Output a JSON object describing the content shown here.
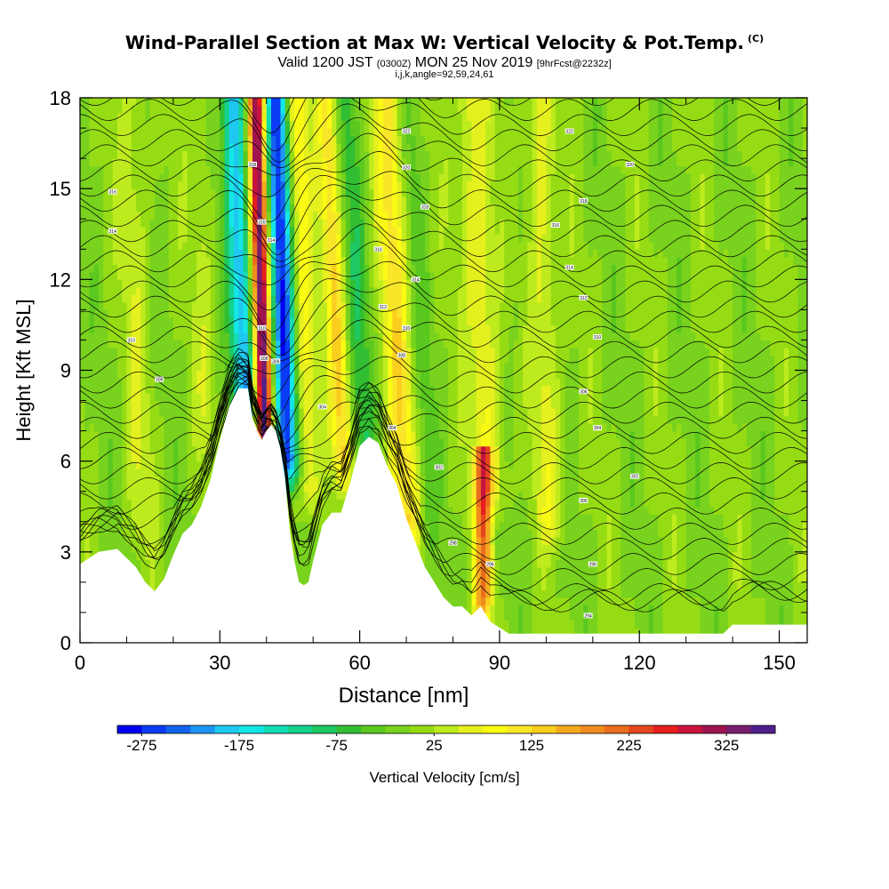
{
  "title": {
    "main": "Wind-Parallel Section at Max W: Vertical Velocity & Pot.Temp.",
    "copyright": "(C)",
    "valid_prefix": "Valid 1200 JST",
    "valid_utc": "(0300Z)",
    "valid_date": "MON 25 Nov 2019",
    "forecast": "[9hrFcst@2232z]",
    "indices": "i,j,k,angle=92,59,24,61"
  },
  "chart_data": {
    "type": "heatmap",
    "xlabel": "Distance [nm]",
    "ylabel": "Height [Kft MSL]",
    "xlim": [
      0,
      156
    ],
    "ylim": [
      0,
      18
    ],
    "x_ticks": [
      0,
      30,
      60,
      90,
      120,
      150
    ],
    "y_ticks": [
      0,
      3,
      6,
      9,
      12,
      15,
      18
    ],
    "colorbar": {
      "label": "Vertical Velocity [cm/s]",
      "tick_values": [
        -275,
        -175,
        -75,
        25,
        125,
        225,
        325
      ],
      "tick_labels": [
        "-275",
        "-175",
        "-75",
        "25",
        "125",
        "225",
        "325"
      ],
      "range": [
        -300,
        375
      ],
      "colors": [
        "#0000f0",
        "#0a3cf5",
        "#1464f0",
        "#1e96f5",
        "#1ec8f0",
        "#14e6e6",
        "#14dcb4",
        "#14d28c",
        "#1ec864",
        "#32be32",
        "#5ac81e",
        "#78d21e",
        "#96dc14",
        "#beeb1e",
        "#e6f01e",
        "#fafa14",
        "#fae628",
        "#facd1e",
        "#f5aa1e",
        "#f08c1e",
        "#eb6e1e",
        "#e6461e",
        "#e61e1e",
        "#c8143c",
        "#a01450",
        "#781e6e",
        "#501e8c"
      ]
    },
    "terrain_profile": {
      "distance": [
        0,
        4,
        8,
        12,
        14,
        16,
        18,
        20,
        22,
        24,
        26,
        28,
        30,
        32,
        34,
        36,
        37,
        38,
        39,
        40,
        41,
        42,
        43,
        44,
        45,
        46,
        47,
        48,
        49,
        50,
        52,
        54,
        56,
        58,
        60,
        62,
        64,
        66,
        68,
        70,
        72,
        74,
        76,
        78,
        80,
        82,
        84,
        86,
        88,
        90,
        92,
        94,
        100,
        110,
        120,
        130,
        138,
        140,
        150,
        156
      ],
      "height": [
        2.6,
        3.0,
        3.1,
        2.5,
        2.0,
        1.7,
        2.1,
        2.9,
        3.6,
        3.9,
        4.5,
        5.4,
        6.7,
        7.8,
        8.4,
        8.4,
        7.4,
        7.0,
        6.7,
        7.0,
        7.2,
        7.0,
        6.4,
        5.4,
        3.7,
        2.7,
        2.0,
        1.9,
        2.0,
        2.7,
        3.9,
        4.3,
        4.3,
        5.3,
        6.5,
        6.8,
        6.6,
        5.8,
        5.2,
        4.1,
        3.3,
        2.5,
        2.0,
        1.5,
        1.2,
        1.2,
        0.9,
        1.2,
        0.7,
        0.5,
        0.3,
        0.3,
        0.3,
        0.3,
        0.3,
        0.3,
        0.3,
        0.6,
        0.6,
        0.6
      ]
    },
    "velocity_bands": [
      {
        "center_nm": 35.5,
        "width_nm": 2.4,
        "peak_cm_s": -200,
        "bottom_kft": 7.5,
        "top_kft": 18,
        "tilt_nm_per_kft": -0.25
      },
      {
        "center_nm": 39.5,
        "width_nm": 1.8,
        "peak_cm_s": 345,
        "bottom_kft": 7,
        "top_kft": 18,
        "tilt_nm_per_kft": -0.15
      },
      {
        "center_nm": 44.5,
        "width_nm": 2.4,
        "peak_cm_s": -265,
        "bottom_kft": 6,
        "top_kft": 18,
        "tilt_nm_per_kft": -0.2
      },
      {
        "center_nm": 49,
        "width_nm": 2.5,
        "peak_cm_s": 90,
        "bottom_kft": 5,
        "top_kft": 18,
        "tilt_nm_per_kft": -0.2
      },
      {
        "center_nm": 56.5,
        "width_nm": 2.2,
        "peak_cm_s": 125,
        "bottom_kft": 6,
        "top_kft": 18,
        "tilt_nm_per_kft": -0.3
      },
      {
        "center_nm": 61.5,
        "width_nm": 2.8,
        "peak_cm_s": -60,
        "bottom_kft": 5,
        "top_kft": 18,
        "tilt_nm_per_kft": -0.3
      },
      {
        "center_nm": 70,
        "width_nm": 3.0,
        "peak_cm_s": 110,
        "bottom_kft": 4,
        "top_kft": 18,
        "tilt_nm_per_kft": -0.3
      },
      {
        "center_nm": 75,
        "width_nm": 2.2,
        "peak_cm_s": -30,
        "bottom_kft": 4,
        "top_kft": 18,
        "tilt_nm_per_kft": -0.3
      },
      {
        "center_nm": 86.5,
        "width_nm": 1.8,
        "peak_cm_s": 200,
        "bottom_kft": 1.5,
        "top_kft": 5.5,
        "tilt_nm_per_kft": 0
      },
      {
        "center_nm": 88,
        "width_nm": 3.5,
        "peak_cm_s": 80,
        "bottom_kft": 5,
        "top_kft": 18,
        "tilt_nm_per_kft": -0.3
      },
      {
        "center_nm": 95,
        "width_nm": 2.5,
        "peak_cm_s": -10,
        "bottom_kft": 3,
        "top_kft": 18,
        "tilt_nm_per_kft": -0.2
      },
      {
        "center_nm": 101,
        "width_nm": 3.0,
        "peak_cm_s": 65,
        "bottom_kft": 4,
        "top_kft": 18,
        "tilt_nm_per_kft": -0.2
      },
      {
        "center_nm": 13,
        "width_nm": 3.0,
        "peak_cm_s": 40,
        "bottom_kft": 4,
        "top_kft": 18,
        "tilt_nm_per_kft": -0.1
      },
      {
        "center_nm": 27,
        "width_nm": 2.5,
        "peak_cm_s": 30,
        "bottom_kft": 7,
        "top_kft": 18,
        "tilt_nm_per_kft": -0.1
      }
    ],
    "background_velocity_cm_s": 0,
    "theta_contour_labels": [
      {
        "x": 7,
        "y": 14.9,
        "label": "316"
      },
      {
        "x": 7,
        "y": 13.6,
        "label": "314"
      },
      {
        "x": 11,
        "y": 10,
        "label": "310"
      },
      {
        "x": 17,
        "y": 8.7,
        "label": "308"
      },
      {
        "x": 37,
        "y": 15.8,
        "label": "318"
      },
      {
        "x": 39,
        "y": 13.9,
        "label": "316"
      },
      {
        "x": 41,
        "y": 13.3,
        "label": "314"
      },
      {
        "x": 39,
        "y": 10.4,
        "label": "310"
      },
      {
        "x": 39.5,
        "y": 9.4,
        "label": "308"
      },
      {
        "x": 42,
        "y": 9.3,
        "label": "306"
      },
      {
        "x": 52,
        "y": 7.8,
        "label": "304"
      },
      {
        "x": 70,
        "y": 16.9,
        "label": "322"
      },
      {
        "x": 70,
        "y": 15.7,
        "label": "320"
      },
      {
        "x": 74,
        "y": 14.4,
        "label": "318"
      },
      {
        "x": 64,
        "y": 13,
        "label": "316"
      },
      {
        "x": 72,
        "y": 12,
        "label": "314"
      },
      {
        "x": 65,
        "y": 11.1,
        "label": "312"
      },
      {
        "x": 70,
        "y": 10.4,
        "label": "310"
      },
      {
        "x": 69,
        "y": 9.5,
        "label": "308"
      },
      {
        "x": 67,
        "y": 7.1,
        "label": "304"
      },
      {
        "x": 77,
        "y": 5.8,
        "label": "302"
      },
      {
        "x": 80,
        "y": 3.3,
        "label": "298"
      },
      {
        "x": 88,
        "y": 2.6,
        "label": "296"
      },
      {
        "x": 105,
        "y": 16.9,
        "label": "322"
      },
      {
        "x": 118,
        "y": 15.8,
        "label": "320"
      },
      {
        "x": 108,
        "y": 14.6,
        "label": "318"
      },
      {
        "x": 102,
        "y": 13.8,
        "label": "316"
      },
      {
        "x": 105,
        "y": 12.4,
        "label": "314"
      },
      {
        "x": 108,
        "y": 11.4,
        "label": "312"
      },
      {
        "x": 111,
        "y": 10.1,
        "label": "310"
      },
      {
        "x": 108,
        "y": 8.3,
        "label": "306"
      },
      {
        "x": 111,
        "y": 7.1,
        "label": "304"
      },
      {
        "x": 119,
        "y": 5.5,
        "label": "302"
      },
      {
        "x": 108,
        "y": 4.7,
        "label": "300"
      },
      {
        "x": 110,
        "y": 2.6,
        "label": "296"
      },
      {
        "x": 109,
        "y": 0.9,
        "label": "294"
      }
    ]
  }
}
